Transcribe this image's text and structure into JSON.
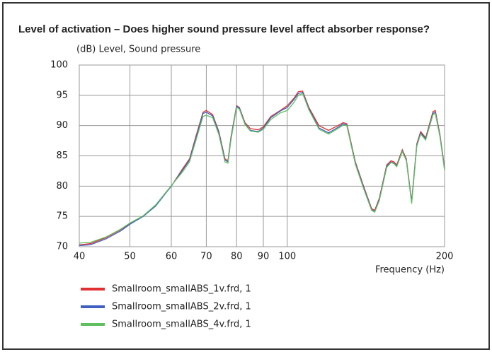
{
  "chart_data": {
    "type": "line",
    "title": "Level of activation – Does higher sound pressure level affect absorber response?",
    "y_label": "(dB)  Level, Sound pressure",
    "x_label": "Frequency  (Hz)",
    "x_log": true,
    "grid": true,
    "xlim": [
      40,
      200
    ],
    "xticks": [
      40,
      50,
      60,
      70,
      80,
      90,
      100,
      200
    ],
    "ylim": [
      70,
      100
    ],
    "yticks": [
      70,
      75,
      80,
      85,
      90,
      95,
      100
    ],
    "x": [
      40,
      42,
      45,
      48,
      50,
      53,
      56,
      60,
      63,
      65,
      67,
      69,
      70,
      72,
      74,
      76,
      77,
      78,
      80,
      81,
      83,
      85,
      88,
      90,
      93,
      97,
      100,
      103,
      105,
      107,
      110,
      115,
      120,
      125,
      128,
      130,
      135,
      140,
      145,
      147,
      150,
      155,
      158,
      160,
      162,
      166,
      169,
      173,
      177,
      180,
      184,
      190,
      192,
      196,
      200
    ],
    "series": [
      {
        "name": "Smallroom_smallABS_1v.frd, 1",
        "color": "#e03030",
        "values": [
          70.3,
          70.5,
          71.5,
          72.8,
          73.8,
          75,
          76.8,
          80,
          82.8,
          84.5,
          88.5,
          92.2,
          92.5,
          91.8,
          89,
          84.5,
          84.2,
          88,
          93.3,
          93,
          90.5,
          89.5,
          89.3,
          89.8,
          91.5,
          92.5,
          93.3,
          94.5,
          95.6,
          95.7,
          93,
          90,
          89.2,
          90,
          90.5,
          90.3,
          84,
          80,
          76.3,
          76,
          78,
          83.5,
          84.2,
          84,
          83.5,
          86,
          84.5,
          77.5,
          87,
          89,
          88,
          92.3,
          92.5,
          88.5,
          83
        ]
      },
      {
        "name": "Smallroom_smallABS_2v.frd, 1",
        "color": "#4060c0",
        "values": [
          70.2,
          70.3,
          71.3,
          72.6,
          73.7,
          75,
          76.7,
          80,
          82.6,
          84.3,
          88.2,
          92,
          92.2,
          91.6,
          88.8,
          84.3,
          84,
          87.8,
          93.2,
          92.9,
          90.3,
          89.2,
          89,
          89.6,
          91.3,
          92.4,
          93,
          94.3,
          95.3,
          95.5,
          92.8,
          89.6,
          88.8,
          89.7,
          90.3,
          90.1,
          83.8,
          79.8,
          76.1,
          75.8,
          77.8,
          83.3,
          84,
          83.8,
          83.3,
          85.8,
          84.3,
          77.3,
          86.8,
          88.8,
          87.8,
          92,
          92.2,
          88.3,
          82.8
        ]
      },
      {
        "name": "Smallroom_smallABS_4v.frd, 1",
        "color": "#60c060",
        "values": [
          70.6,
          70.7,
          71.6,
          72.9,
          73.9,
          75.1,
          76.9,
          80.1,
          82.3,
          84,
          87.8,
          91.5,
          91.7,
          91.3,
          88.5,
          84,
          83.8,
          87.5,
          93,
          92.7,
          90.2,
          89.1,
          88.9,
          89.4,
          91,
          92.1,
          92.5,
          93.8,
          95,
          95.3,
          92.6,
          89.4,
          88.6,
          89.5,
          90.1,
          90,
          83.6,
          79.6,
          76,
          75.7,
          77.6,
          83.1,
          83.9,
          83.7,
          83.2,
          85.7,
          84.2,
          77.1,
          86.6,
          88.6,
          87.6,
          91.8,
          92,
          88.1,
          82.6
        ]
      }
    ]
  }
}
